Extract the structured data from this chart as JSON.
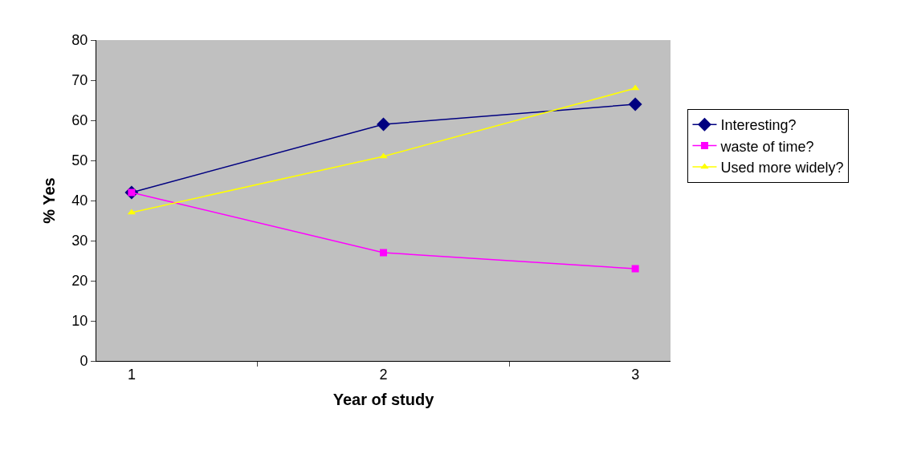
{
  "chart_data": {
    "type": "line",
    "xlabel": "Year of study",
    "ylabel": "% Yes",
    "categories": [
      "1",
      "2",
      "3"
    ],
    "series": [
      {
        "name": "Interesting?",
        "color": "#000080",
        "marker": "diamond",
        "values": [
          42,
          59,
          64
        ]
      },
      {
        "name": "waste of time?",
        "color": "#ff00ff",
        "marker": "square",
        "values": [
          42,
          27,
          23
        ]
      },
      {
        "name": "Used more widely?",
        "color": "#ffff00",
        "marker": "triangle",
        "values": [
          37,
          51,
          68
        ]
      }
    ],
    "ylim": [
      0,
      80
    ],
    "yticks": [
      0,
      10,
      20,
      30,
      40,
      50,
      60,
      70,
      80
    ],
    "grid": false,
    "legend": "right",
    "line_style": "solid"
  }
}
